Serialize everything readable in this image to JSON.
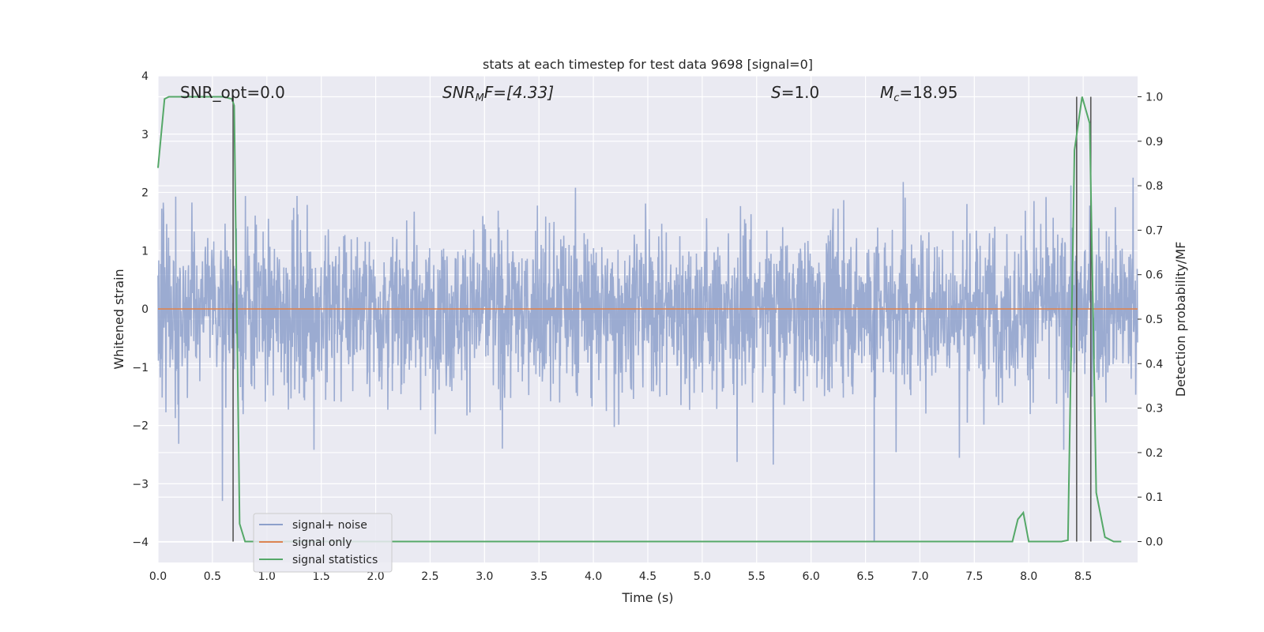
{
  "chart_data": {
    "type": "line",
    "title": "stats at each timestep for test data 9698 [signal=0]",
    "xlabel": "Time (s)",
    "ylabel": "Whitened strain",
    "y2label": "Detection probability/MF",
    "xlim": [
      0.0,
      9.0
    ],
    "ylim": [
      -4.35,
      4.0
    ],
    "y2lim": [
      -0.047,
      1.047
    ],
    "xticks": [
      "0.0",
      "0.5",
      "1.0",
      "1.5",
      "2.0",
      "2.5",
      "3.0",
      "3.5",
      "4.0",
      "4.5",
      "5.0",
      "5.5",
      "6.0",
      "6.5",
      "7.0",
      "7.5",
      "8.0",
      "8.5"
    ],
    "yticks": [
      "4",
      "3",
      "2",
      "1",
      "0",
      "−1",
      "−2",
      "−3",
      "−4"
    ],
    "y2ticks": [
      "1.0",
      "0.9",
      "0.8",
      "0.7",
      "0.6",
      "0.5",
      "0.4",
      "0.3",
      "0.2",
      "0.1",
      "0.0"
    ],
    "grid": true,
    "legend_position": "lower-left",
    "annotations": {
      "snr_opt": "SNR_opt=0.0",
      "snr_mf_label": "SNR",
      "snr_mf_sub": "M",
      "snr_mf_rest": "F=[4.33]",
      "s_label": "S",
      "s_rest": "=1.0",
      "mc_label": "M",
      "mc_sub": "c",
      "mc_rest": "=18.95"
    },
    "series": [
      {
        "name": "signal+ noise",
        "color": "#8da0cb",
        "style": "dense noise, approx. ±1.5 with spikes to ±3.6",
        "amplitude_core": 1.5,
        "amplitude_peak": 3.6
      },
      {
        "name": "signal only",
        "color": "#dd8452",
        "x": [
          0.0,
          9.0
        ],
        "y": [
          0.0,
          0.0
        ]
      },
      {
        "name": "signal statistics",
        "color": "#55a868",
        "axis": "right",
        "x": [
          0.0,
          0.06,
          0.1,
          0.2,
          0.3,
          0.4,
          0.5,
          0.6,
          0.68,
          0.7,
          0.75,
          0.8,
          0.9,
          7.85,
          7.9,
          7.95,
          8.0,
          8.05,
          8.3,
          8.36,
          8.42,
          8.49,
          8.56,
          8.62,
          8.7,
          8.78,
          8.85
        ],
        "y": [
          0.84,
          0.995,
          1.0,
          1.0,
          1.0,
          1.0,
          1.0,
          1.0,
          0.995,
          0.98,
          0.04,
          0.0,
          0.0,
          0.0,
          0.05,
          0.065,
          0.0,
          0.0,
          0.0,
          0.003,
          0.88,
          1.0,
          0.94,
          0.11,
          0.01,
          0.0,
          0.0
        ]
      }
    ],
    "vlines": {
      "color": "#555555",
      "x": [
        0.69,
        8.44,
        8.57
      ]
    },
    "highlight_spikes": [
      {
        "x": 6.58,
        "y": -4.0
      }
    ]
  }
}
